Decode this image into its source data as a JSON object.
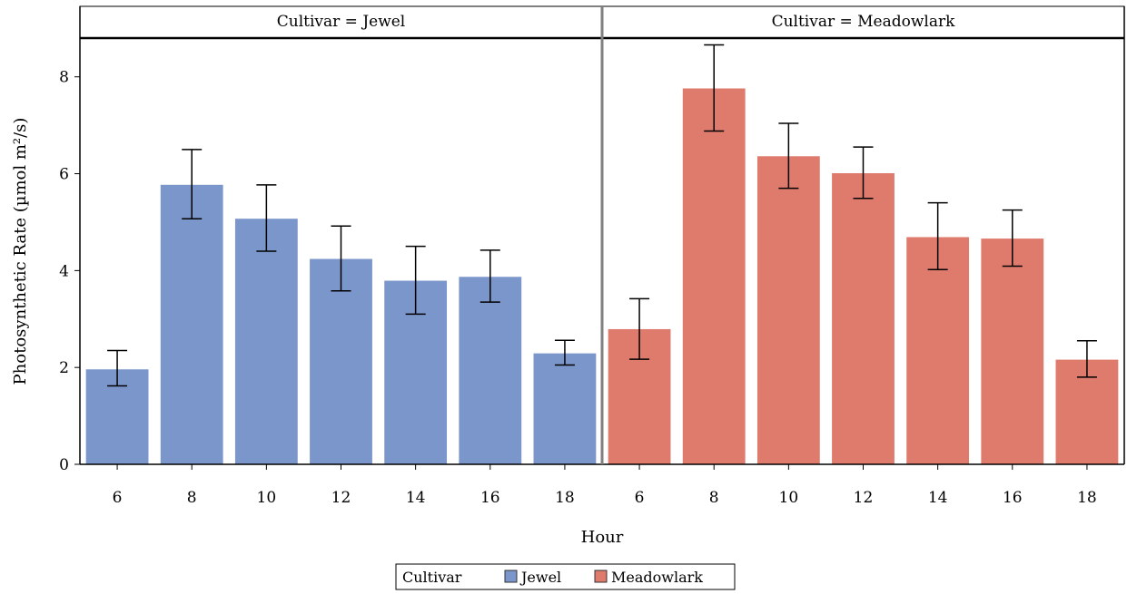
{
  "chart_data": {
    "type": "bar",
    "xlabel": "Hour",
    "ylabel": "Photosynthetic Rate (µmol m²/s)",
    "ylim": [
      0,
      8.8
    ],
    "yticks": [
      0,
      2,
      4,
      6,
      8
    ],
    "categories": [
      "6",
      "8",
      "10",
      "12",
      "14",
      "16",
      "18"
    ],
    "grid": false,
    "legend": {
      "title": "Cultivar",
      "placement": "bottom-center",
      "entries": [
        "Jewel",
        "Meadowlark"
      ]
    },
    "panels": [
      {
        "label": "Cultivar = Jewel",
        "series_name": "Jewel",
        "color": "#7b96cb",
        "values": [
          1.97,
          5.78,
          5.08,
          4.25,
          3.8,
          3.88,
          2.3
        ],
        "error_low": [
          1.62,
          5.07,
          4.4,
          3.58,
          3.1,
          3.35,
          2.05
        ],
        "error_high": [
          2.35,
          6.5,
          5.77,
          4.92,
          4.5,
          4.42,
          2.56
        ]
      },
      {
        "label": "Cultivar = Meadowlark",
        "series_name": "Meadowlark",
        "color": "#df7b6c",
        "values": [
          2.8,
          7.77,
          6.37,
          6.02,
          4.7,
          4.67,
          2.17
        ],
        "error_low": [
          2.17,
          6.88,
          5.7,
          5.49,
          4.02,
          4.09,
          1.8
        ],
        "error_high": [
          3.42,
          8.66,
          7.04,
          6.55,
          5.4,
          5.25,
          2.55
        ]
      }
    ]
  }
}
